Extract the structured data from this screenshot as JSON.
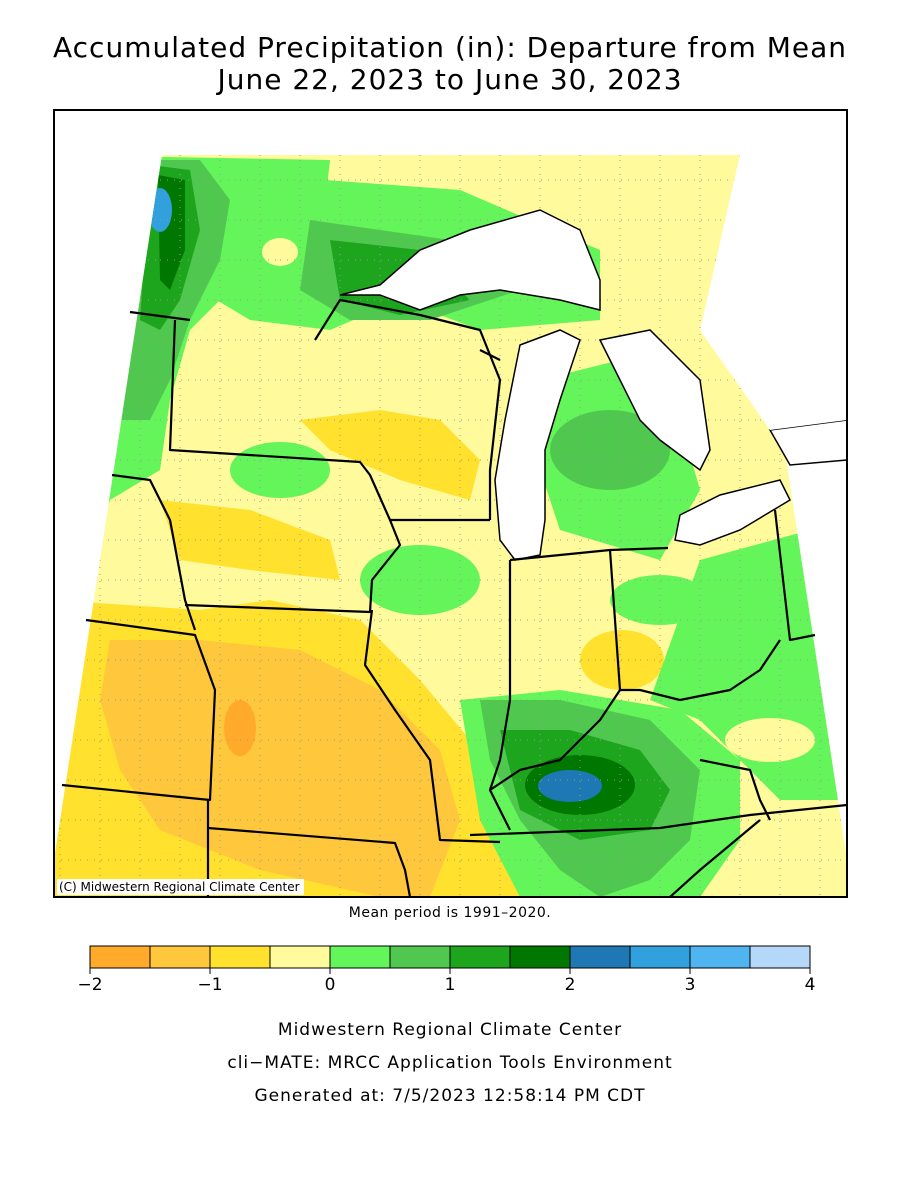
{
  "title": {
    "line1": "Accumulated Precipitation (in): Departure from Mean",
    "line2": "June 22, 2023 to June 30, 2023"
  },
  "copyright": "(C) Midwestern Regional Climate Center",
  "mean_period": "Mean period is 1991–2020.",
  "legend": {
    "bins": [
      {
        "from": -2.0,
        "to": -1.5,
        "color": "#FFAA2A"
      },
      {
        "from": -1.5,
        "to": -1.0,
        "color": "#FFC83C"
      },
      {
        "from": -1.0,
        "to": -0.5,
        "color": "#FFE12E"
      },
      {
        "from": -0.5,
        "to": 0.0,
        "color": "#FFFA9B"
      },
      {
        "from": 0.0,
        "to": 0.5,
        "color": "#64F55A"
      },
      {
        "from": 0.5,
        "to": 1.0,
        "color": "#50C850"
      },
      {
        "from": 1.0,
        "to": 1.5,
        "color": "#1EA51E"
      },
      {
        "from": 1.5,
        "to": 2.0,
        "color": "#007800"
      },
      {
        "from": 2.0,
        "to": 2.5,
        "color": "#1E78B4"
      },
      {
        "from": 2.5,
        "to": 3.0,
        "color": "#32A0DC"
      },
      {
        "from": 3.0,
        "to": 3.5,
        "color": "#50B4F0"
      },
      {
        "from": 3.5,
        "to": 4.0,
        "color": "#B4D7FA"
      }
    ],
    "tick_labels": [
      "−2",
      "−1",
      "0",
      "1",
      "2",
      "3",
      "4"
    ]
  },
  "credits": {
    "line1": "Midwestern Regional Climate Center",
    "line2": "cli−MATE: MRCC Application Tools Environment",
    "line3": "Generated at: 7/5/2023 12:58:14 PM CDT"
  }
}
